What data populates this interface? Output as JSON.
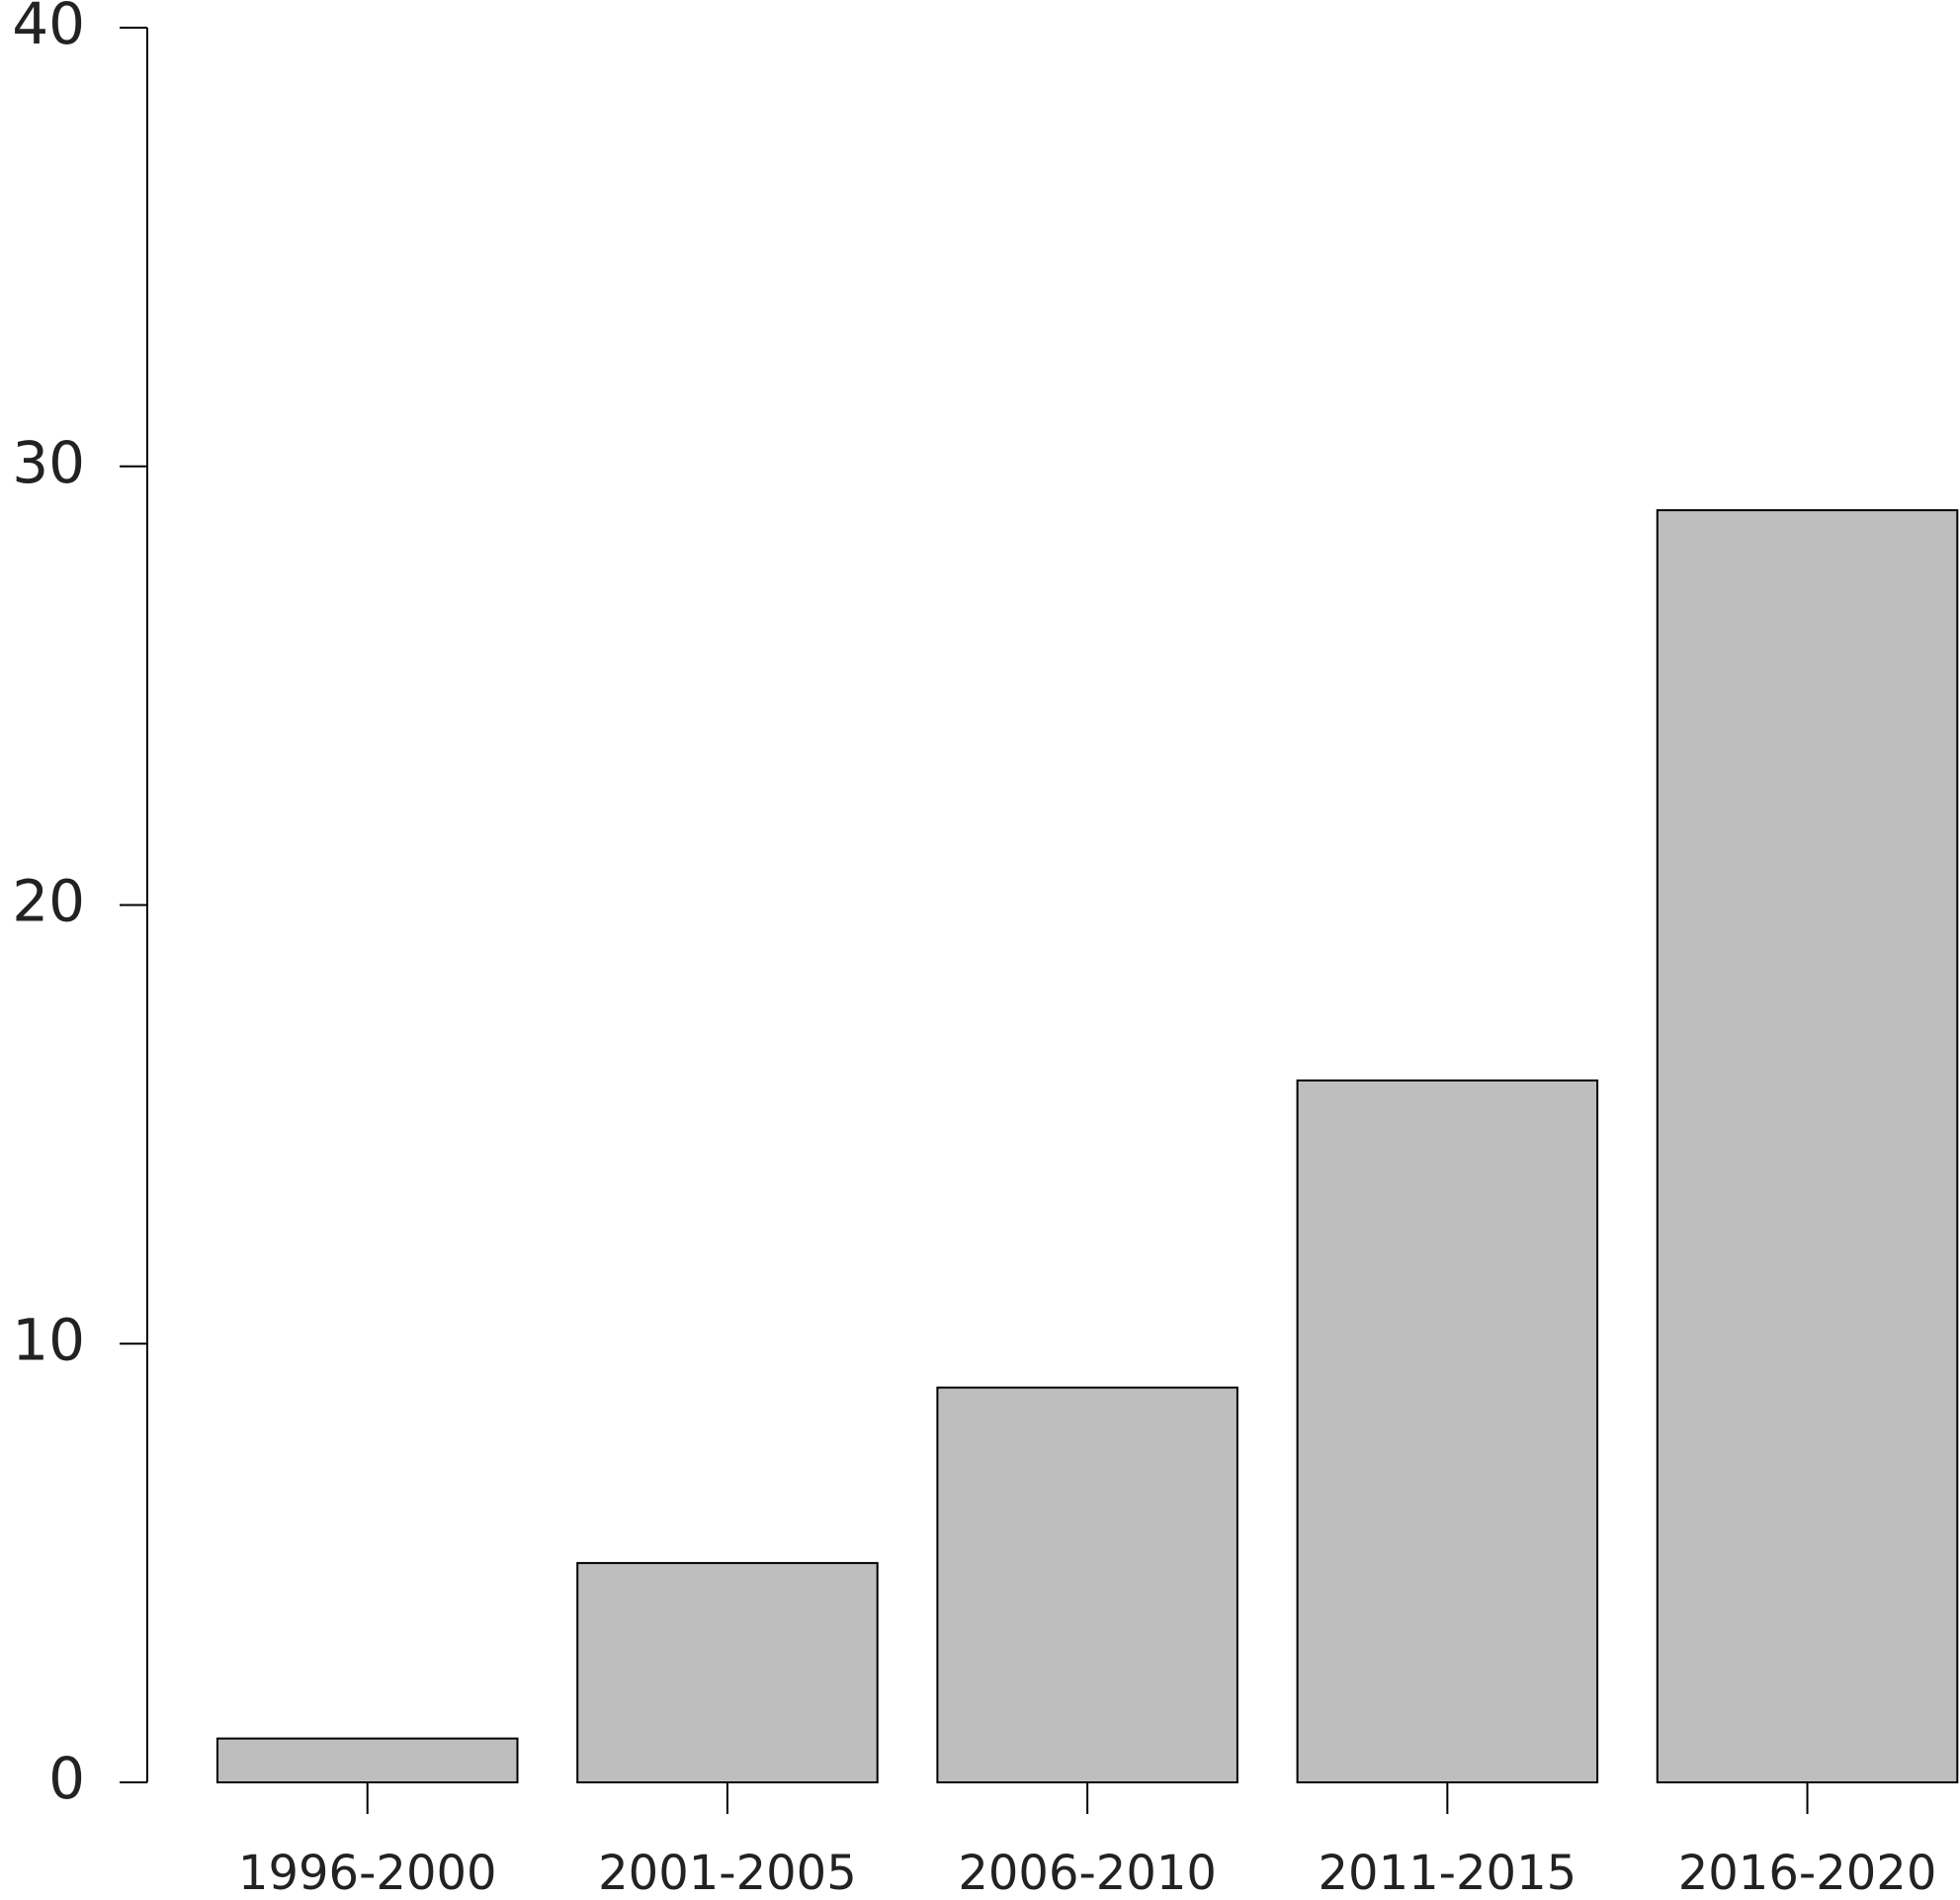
{
  "chart_data": {
    "type": "bar",
    "categories": [
      "1996-2000",
      "2001-2005",
      "2006-2010",
      "2011-2015",
      "2016-2020"
    ],
    "values": [
      1,
      5,
      9,
      16,
      29
    ],
    "color": "#bebebe",
    "ylim": [
      0,
      40
    ],
    "yticks": [
      0,
      10,
      20,
      30,
      40
    ],
    "grid": false
  }
}
